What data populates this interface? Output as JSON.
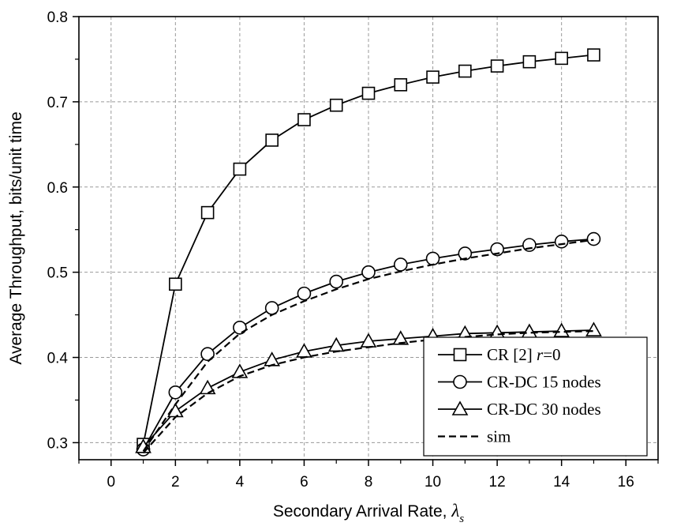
{
  "chart_data": {
    "type": "line",
    "xlabel": "Secondary Arrival Rate, ",
    "xlabel_symbol": "λ",
    "xlabel_subscript": "s",
    "ylabel": "Average Throughput, bits/unit time",
    "xlim": [
      -1,
      17
    ],
    "ylim": [
      0.28,
      0.8
    ],
    "xticks": [
      0,
      2,
      4,
      6,
      8,
      10,
      12,
      14,
      16
    ],
    "xtick_labels": [
      "0",
      "2",
      "4",
      "6",
      "8",
      "10",
      "12",
      "14",
      "16"
    ],
    "yticks": [
      0.3,
      0.4,
      0.5,
      0.6,
      0.7,
      0.8
    ],
    "ytick_labels": [
      "0.3",
      "0.4",
      "0.5",
      "0.6",
      "0.7",
      "0.8"
    ],
    "grid": true,
    "legend_position": "bottom-right",
    "series": [
      {
        "name": "CR [2] r=0",
        "legend_parts": [
          "CR [2] ",
          "r",
          "=0"
        ],
        "marker": "square",
        "style": "solid",
        "x": [
          1,
          2,
          3,
          4,
          5,
          6,
          7,
          8,
          9,
          10,
          11,
          12,
          13,
          14,
          15
        ],
        "y": [
          0.298,
          0.486,
          0.57,
          0.621,
          0.655,
          0.679,
          0.696,
          0.71,
          0.72,
          0.729,
          0.736,
          0.742,
          0.747,
          0.751,
          0.755
        ]
      },
      {
        "name": "CR-DC 15 nodes",
        "marker": "circle",
        "style": "solid",
        "x": [
          1,
          2,
          3,
          4,
          5,
          6,
          7,
          8,
          9,
          10,
          11,
          12,
          13,
          14,
          15
        ],
        "y": [
          0.292,
          0.359,
          0.404,
          0.435,
          0.458,
          0.475,
          0.489,
          0.5,
          0.509,
          0.516,
          0.522,
          0.527,
          0.532,
          0.536,
          0.539
        ]
      },
      {
        "name": "CR-DC 30 nodes",
        "marker": "triangle",
        "style": "solid",
        "x": [
          1,
          2,
          3,
          4,
          5,
          6,
          7,
          8,
          9,
          10,
          11,
          12,
          13,
          14,
          15
        ],
        "y": [
          0.295,
          0.337,
          0.364,
          0.383,
          0.397,
          0.407,
          0.414,
          0.419,
          0.422,
          0.425,
          0.428,
          0.429,
          0.43,
          0.431,
          0.432
        ]
      },
      {
        "name": "sim",
        "marker": "none",
        "style": "dashed",
        "x": [
          1,
          2,
          3,
          4,
          5,
          6,
          7,
          8,
          9,
          10,
          11,
          12,
          13,
          14,
          15
        ],
        "y": [
          0.29,
          0.345,
          0.395,
          0.428,
          0.45,
          0.466,
          0.48,
          0.492,
          0.501,
          0.509,
          0.516,
          0.522,
          0.528,
          0.533,
          0.538
        ]
      },
      {
        "name": "",
        "marker": "none",
        "style": "dashed",
        "x": [
          1,
          2,
          3,
          4,
          5,
          6,
          7,
          8,
          9,
          10,
          11,
          12,
          13,
          14,
          15
        ],
        "y": [
          0.288,
          0.33,
          0.358,
          0.378,
          0.391,
          0.4,
          0.407,
          0.412,
          0.417,
          0.421,
          0.424,
          0.427,
          0.429,
          0.43,
          0.431
        ]
      }
    ]
  }
}
